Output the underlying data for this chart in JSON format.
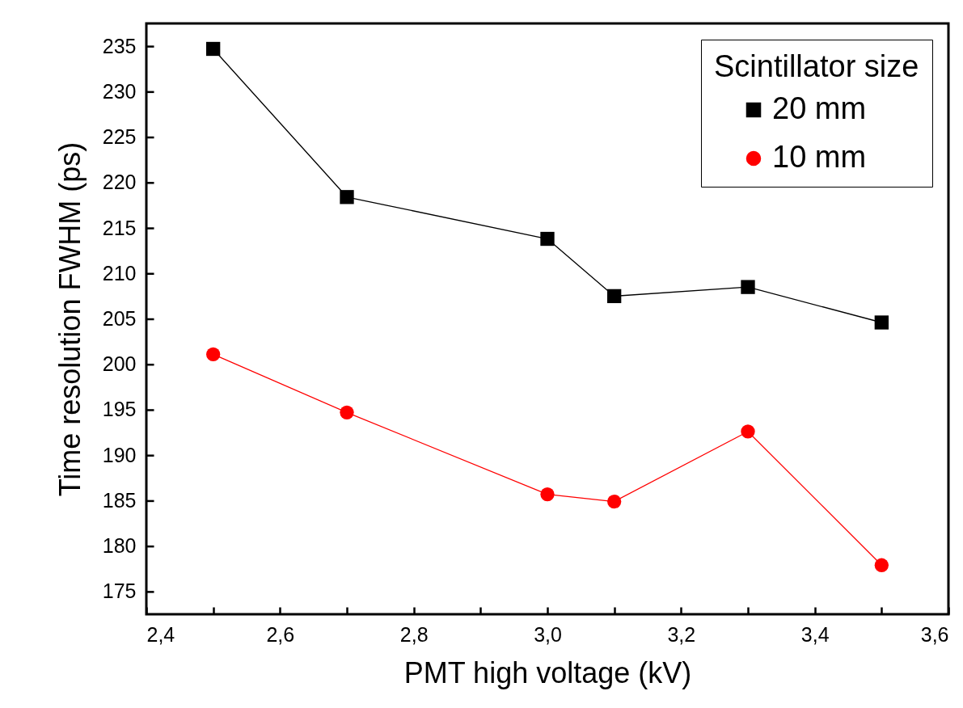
{
  "chart_data": {
    "type": "line",
    "xlabel": "PMT high voltage (kV)",
    "ylabel": "Time resolution FWHM (ps)",
    "legend_title": "Scintillator size",
    "legend": "top right",
    "grid": false,
    "x": [
      2.5,
      2.7,
      3.0,
      3.1,
      3.3,
      3.5
    ],
    "series": [
      {
        "name": "20 mm",
        "color": "#000000",
        "marker": "square",
        "values": [
          234.7,
          218.4,
          213.8,
          207.5,
          208.5,
          204.6
        ]
      },
      {
        "name": "10 mm",
        "color": "#ff0000",
        "marker": "circle",
        "values": [
          201.1,
          194.7,
          185.7,
          184.9,
          192.6,
          177.9
        ]
      }
    ],
    "xlim": [
      2.4,
      3.6
    ],
    "xticks": [
      {
        "value": 2.4,
        "label": "2,4"
      },
      {
        "value": 2.5,
        "label": null
      },
      {
        "value": 2.6,
        "label": "2,6"
      },
      {
        "value": 2.7,
        "label": null
      },
      {
        "value": 2.8,
        "label": "2,8"
      },
      {
        "value": 2.9,
        "label": null
      },
      {
        "value": 3.0,
        "label": "3,0"
      },
      {
        "value": 3.1,
        "label": null
      },
      {
        "value": 3.2,
        "label": "3,2"
      },
      {
        "value": 3.3,
        "label": null
      },
      {
        "value": 3.4,
        "label": "3,4"
      },
      {
        "value": 3.5,
        "label": null
      },
      {
        "value": 3.6,
        "label": "3,6"
      }
    ],
    "ylim": [
      172.5,
      237.5
    ],
    "yticks": [
      175,
      180,
      185,
      190,
      195,
      200,
      205,
      210,
      215,
      220,
      225,
      230,
      235
    ]
  }
}
